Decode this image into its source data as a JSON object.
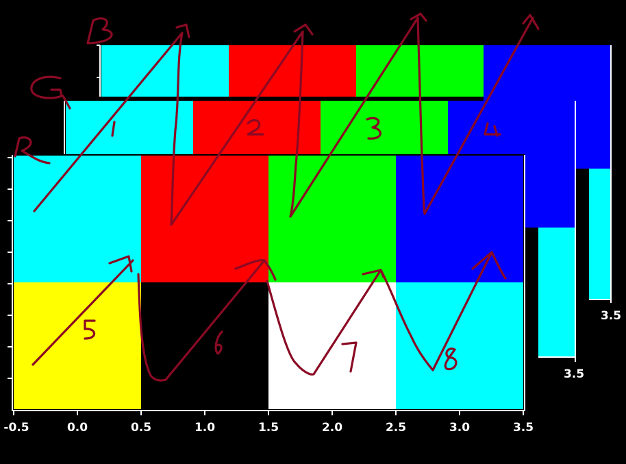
{
  "diagram": {
    "description_free": true,
    "planes": [
      {
        "id": "B",
        "label": "B"
      },
      {
        "id": "G",
        "label": "G"
      },
      {
        "id": "R",
        "label": "R"
      }
    ],
    "cell_numbers": [
      "1",
      "2",
      "3",
      "4",
      "5",
      "6",
      "7",
      "8"
    ],
    "x_ticks": [
      "-0.5",
      "0.0",
      "0.5",
      "1.0",
      "1.5",
      "2.0",
      "2.5",
      "3.0",
      "3.5"
    ],
    "back_plane_end_tick": "3.5",
    "middle_plane_end_tick": "3.5",
    "grid_rows": [
      [
        "cyan",
        "red",
        "green",
        "blue"
      ],
      [
        "yellow",
        "black",
        "white",
        "cyan"
      ]
    ],
    "colors": {
      "cyan": "#00ffff",
      "red": "#ff0000",
      "green": "#00ff00",
      "blue": "#0000ff",
      "yellow": "#ffff00",
      "black": "#000000",
      "white": "#ffffff",
      "ink": "#8a0a24"
    }
  }
}
